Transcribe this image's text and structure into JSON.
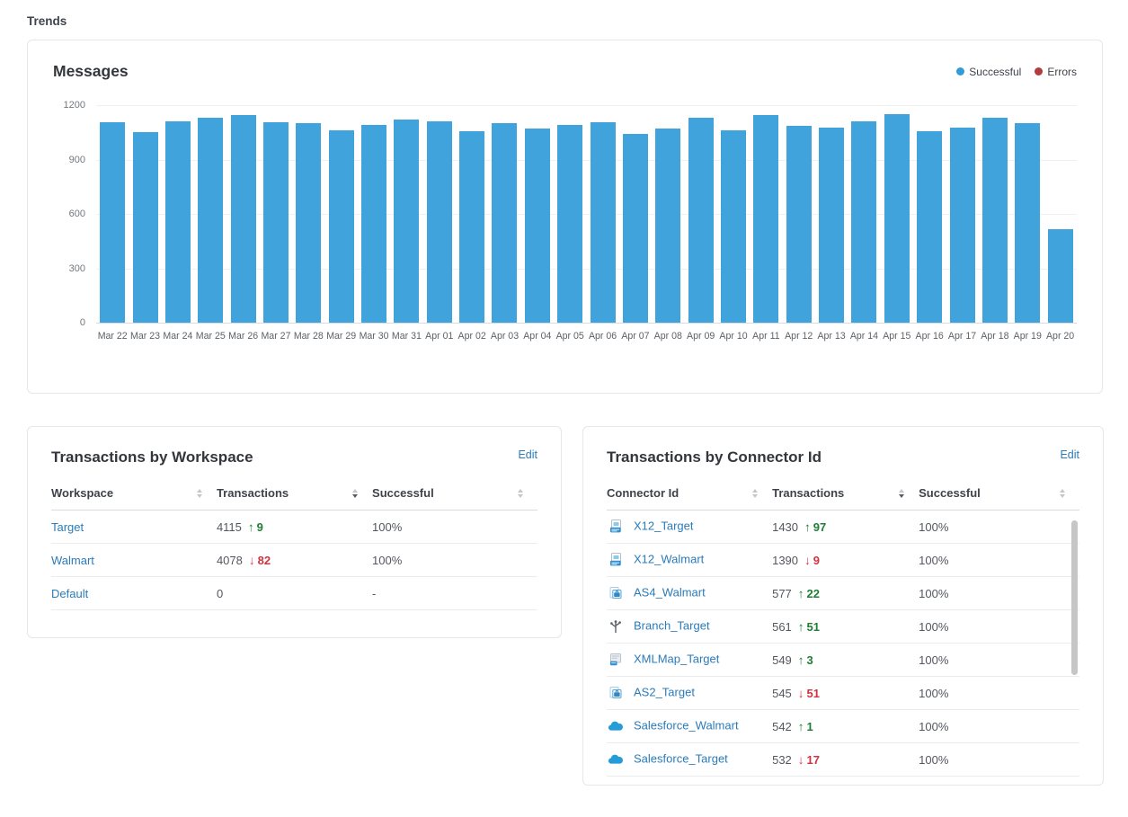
{
  "page": {
    "title": "Trends"
  },
  "chart": {
    "title": "Messages",
    "legend": [
      {
        "label": "Successful",
        "color": "#2f9cd8"
      },
      {
        "label": "Errors",
        "color": "#b23b3f"
      }
    ]
  },
  "chart_data": {
    "type": "bar",
    "title": "Messages",
    "x": [
      "Mar 22",
      "Mar 23",
      "Mar 24",
      "Mar 25",
      "Mar 26",
      "Mar 27",
      "Mar 28",
      "Mar 29",
      "Mar 30",
      "Mar 31",
      "Apr 01",
      "Apr 02",
      "Apr 03",
      "Apr 04",
      "Apr 05",
      "Apr 06",
      "Apr 07",
      "Apr 08",
      "Apr 09",
      "Apr 10",
      "Apr 11",
      "Apr 12",
      "Apr 13",
      "Apr 14",
      "Apr 15",
      "Apr 16",
      "Apr 17",
      "Apr 18",
      "Apr 19",
      "Apr 20"
    ],
    "series": [
      {
        "name": "Successful",
        "color": "#41a3dc",
        "values": [
          1108,
          1053,
          1110,
          1131,
          1146,
          1108,
          1100,
          1062,
          1090,
          1120,
          1110,
          1057,
          1099,
          1072,
          1092,
          1107,
          1042,
          1069,
          1130,
          1061,
          1148,
          1084,
          1077,
          1109,
          1152,
          1057,
          1074,
          1129,
          1102,
          514
        ]
      },
      {
        "name": "Errors",
        "color": "#b23b3f",
        "values": [
          0,
          0,
          0,
          0,
          0,
          0,
          0,
          0,
          0,
          0,
          0,
          0,
          0,
          0,
          0,
          0,
          0,
          0,
          0,
          0,
          0,
          0,
          0,
          0,
          0,
          0,
          0,
          0,
          0,
          0
        ]
      }
    ],
    "xlabel": "",
    "ylabel": "",
    "ylim": [
      0,
      1200
    ],
    "yticks": [
      0,
      300,
      600,
      900,
      1200
    ],
    "grid": true,
    "legend_position": "top-right"
  },
  "workspace_card": {
    "title": "Transactions by Workspace",
    "edit_label": "Edit",
    "columns": [
      "Workspace",
      "Transactions",
      "Successful"
    ],
    "sorted_column": "Transactions",
    "sorted_direction": "desc",
    "rows": [
      {
        "name": "Target",
        "transactions": "4115",
        "direction": "up",
        "delta": "9",
        "successful": "100%"
      },
      {
        "name": "Walmart",
        "transactions": "4078",
        "direction": "down",
        "delta": "82",
        "successful": "100%"
      },
      {
        "name": "Default",
        "transactions": "0",
        "direction": "",
        "delta": "",
        "successful": "-"
      }
    ]
  },
  "connector_card": {
    "title": "Transactions by Connector Id",
    "edit_label": "Edit",
    "columns": [
      "Connector Id",
      "Transactions",
      "Successful"
    ],
    "sorted_column": "Transactions",
    "sorted_direction": "desc",
    "rows": [
      {
        "name": "X12_Target",
        "icon": "x12-file-icon",
        "transactions": "1430",
        "direction": "up",
        "delta": "97",
        "successful": "100%"
      },
      {
        "name": "X12_Walmart",
        "icon": "x12-file-icon",
        "transactions": "1390",
        "direction": "down",
        "delta": "9",
        "successful": "100%"
      },
      {
        "name": "AS4_Walmart",
        "icon": "as4-file-icon",
        "transactions": "577",
        "direction": "up",
        "delta": "22",
        "successful": "100%"
      },
      {
        "name": "Branch_Target",
        "icon": "branch-icon",
        "transactions": "561",
        "direction": "up",
        "delta": "51",
        "successful": "100%"
      },
      {
        "name": "XMLMap_Target",
        "icon": "xmlmap-file-icon",
        "transactions": "549",
        "direction": "up",
        "delta": "3",
        "successful": "100%"
      },
      {
        "name": "AS2_Target",
        "icon": "as2-file-icon",
        "transactions": "545",
        "direction": "down",
        "delta": "51",
        "successful": "100%"
      },
      {
        "name": "Salesforce_Walmart",
        "icon": "salesforce-cloud-icon",
        "transactions": "542",
        "direction": "up",
        "delta": "1",
        "successful": "100%"
      },
      {
        "name": "Salesforce_Target",
        "icon": "salesforce-cloud-icon",
        "transactions": "532",
        "direction": "down",
        "delta": "17",
        "successful": "100%"
      }
    ]
  },
  "colors": {
    "bar": "#41a3dc",
    "link": "#2b7bb9",
    "delta_up": "#1e7e34",
    "delta_down": "#ce3440",
    "errors": "#b23b3f"
  }
}
